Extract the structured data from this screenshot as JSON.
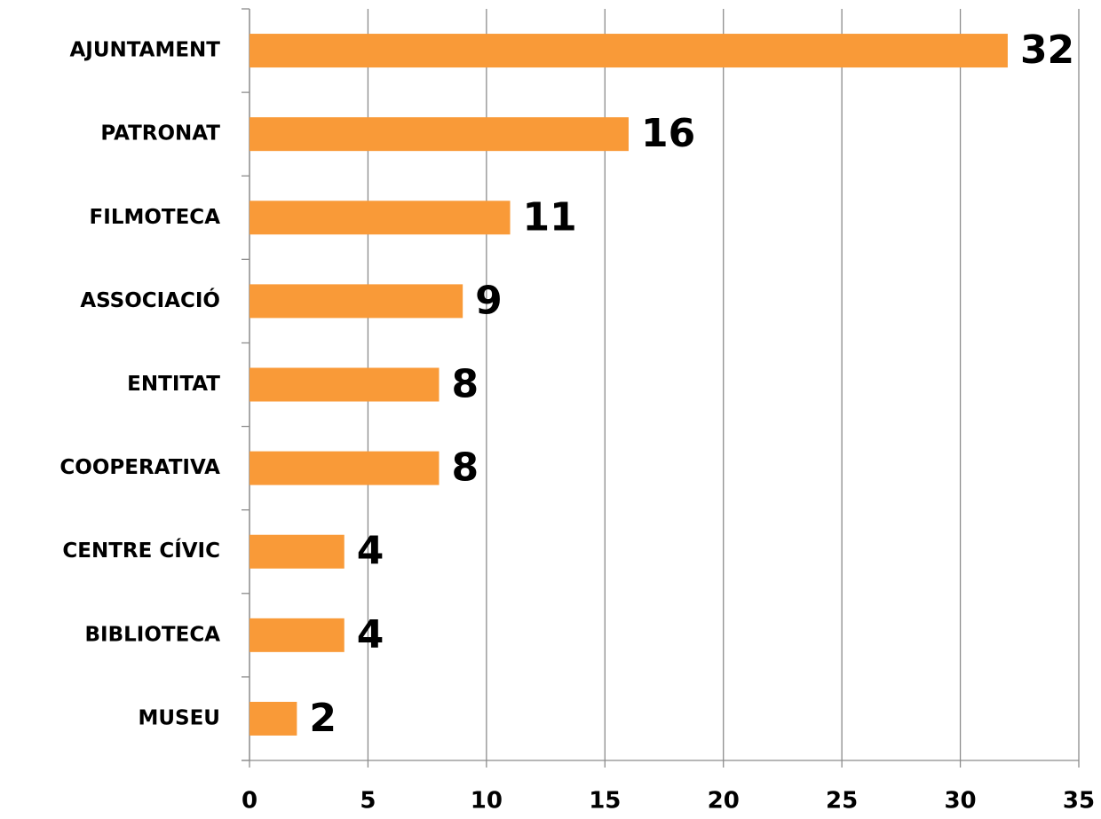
{
  "chart_data": {
    "type": "bar",
    "orientation": "horizontal",
    "categories": [
      "AJUNTAMENT",
      "PATRONAT",
      "FILMOTECA",
      "ASSOCIACIÓ",
      "ENTITAT",
      "COOPERATIVA",
      "CENTRE CÍVIC",
      "BIBLIOTECA",
      "MUSEU"
    ],
    "values": [
      32,
      16,
      11,
      9,
      8,
      8,
      4,
      4,
      2
    ],
    "color": "#f99a38",
    "xlim": [
      0,
      35
    ],
    "xticks": [
      0,
      5,
      10,
      15,
      20,
      25,
      30,
      35
    ],
    "grid": true
  }
}
